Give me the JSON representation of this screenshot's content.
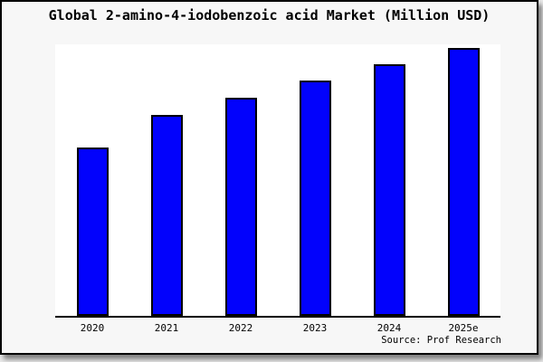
{
  "page": {
    "title": "Global 2-amino-4-iodobenzoic acid Market (Million USD)",
    "source_note": "Source: Prof Research"
  },
  "chart_data": {
    "type": "bar",
    "title": "Global 2-amino-4-iodobenzoic acid Market (Million USD)",
    "categories": [
      "2020",
      "2021",
      "2022",
      "2023",
      "2024",
      "2025e"
    ],
    "values": [
      63,
      75,
      81.5,
      88,
      94,
      100
    ],
    "values_note": "relative bar heights as % of tallest (2025e) bar; chart shows no numeric y-axis ticks or data labels",
    "xlabel": "",
    "ylabel": "",
    "ylim": [
      0,
      100
    ],
    "gridlines": false,
    "legend": "none",
    "y_axis_visible": false,
    "bar_color": "#0202fc",
    "bar_border_color": "#000000",
    "source": "Source: Prof Research"
  },
  "colors": {
    "frame_background": "#f7f7f7",
    "plot_background": "#ffffff",
    "frame_border": "#000000",
    "axis_line": "#000000",
    "bar_fill": "#0202fc",
    "text": "#000000"
  }
}
